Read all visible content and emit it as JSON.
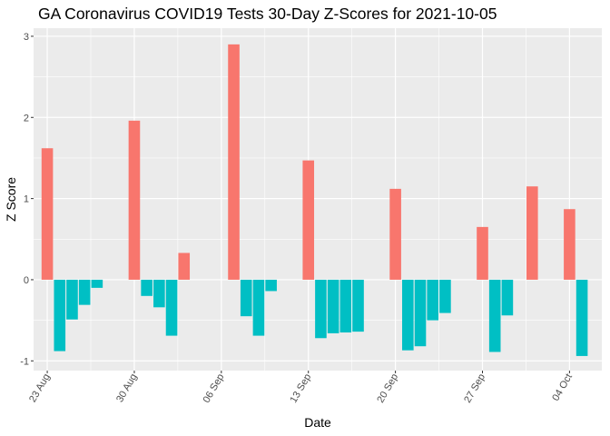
{
  "chart_data": {
    "type": "bar",
    "title": "GA Coronavirus COVID19 Tests 30-Day Z-Scores for 2021-10-05",
    "xlabel": "Date",
    "ylabel": "Z Score",
    "ylim": [
      -1.12,
      3.1
    ],
    "y_ticks": [
      -1,
      0,
      1,
      2,
      3
    ],
    "x_ticks": [
      {
        "date": "2021-08-23",
        "label": "23 Aug"
      },
      {
        "date": "2021-08-30",
        "label": "30 Aug"
      },
      {
        "date": "2021-09-06",
        "label": "06 Sep"
      },
      {
        "date": "2021-09-13",
        "label": "13 Sep"
      },
      {
        "date": "2021-09-20",
        "label": "20 Sep"
      },
      {
        "date": "2021-09-27",
        "label": "27 Sep"
      },
      {
        "date": "2021-10-04",
        "label": "04 Oct"
      }
    ],
    "grid": true,
    "colors": {
      "positive": "#f8766d",
      "negative": "#00bfc4",
      "panel": "#ebebeb",
      "grid": "#ffffff"
    },
    "bars": [
      {
        "date": "2021-08-23",
        "value": 1.62
      },
      {
        "date": "2021-08-24",
        "value": -0.88
      },
      {
        "date": "2021-08-25",
        "value": -0.49
      },
      {
        "date": "2021-08-26",
        "value": -0.31
      },
      {
        "date": "2021-08-27",
        "value": -0.1
      },
      {
        "date": "2021-08-30",
        "value": 1.96
      },
      {
        "date": "2021-08-31",
        "value": -0.2
      },
      {
        "date": "2021-09-01",
        "value": -0.34
      },
      {
        "date": "2021-09-02",
        "value": -0.69
      },
      {
        "date": "2021-09-03",
        "value": 0.33
      },
      {
        "date": "2021-09-07",
        "value": 2.9
      },
      {
        "date": "2021-09-08",
        "value": -0.45
      },
      {
        "date": "2021-09-09",
        "value": -0.69
      },
      {
        "date": "2021-09-10",
        "value": -0.14
      },
      {
        "date": "2021-09-13",
        "value": 1.47
      },
      {
        "date": "2021-09-14",
        "value": -0.72
      },
      {
        "date": "2021-09-15",
        "value": -0.66
      },
      {
        "date": "2021-09-16",
        "value": -0.65
      },
      {
        "date": "2021-09-17",
        "value": -0.64
      },
      {
        "date": "2021-09-20",
        "value": 1.12
      },
      {
        "date": "2021-09-21",
        "value": -0.87
      },
      {
        "date": "2021-09-22",
        "value": -0.82
      },
      {
        "date": "2021-09-23",
        "value": -0.5
      },
      {
        "date": "2021-09-24",
        "value": -0.41
      },
      {
        "date": "2021-09-27",
        "value": 0.65
      },
      {
        "date": "2021-09-28",
        "value": -0.89
      },
      {
        "date": "2021-09-29",
        "value": -0.44
      },
      {
        "date": "2021-10-01",
        "value": 1.15
      },
      {
        "date": "2021-10-04",
        "value": 0.87
      },
      {
        "date": "2021-10-05",
        "value": -0.94
      }
    ]
  }
}
